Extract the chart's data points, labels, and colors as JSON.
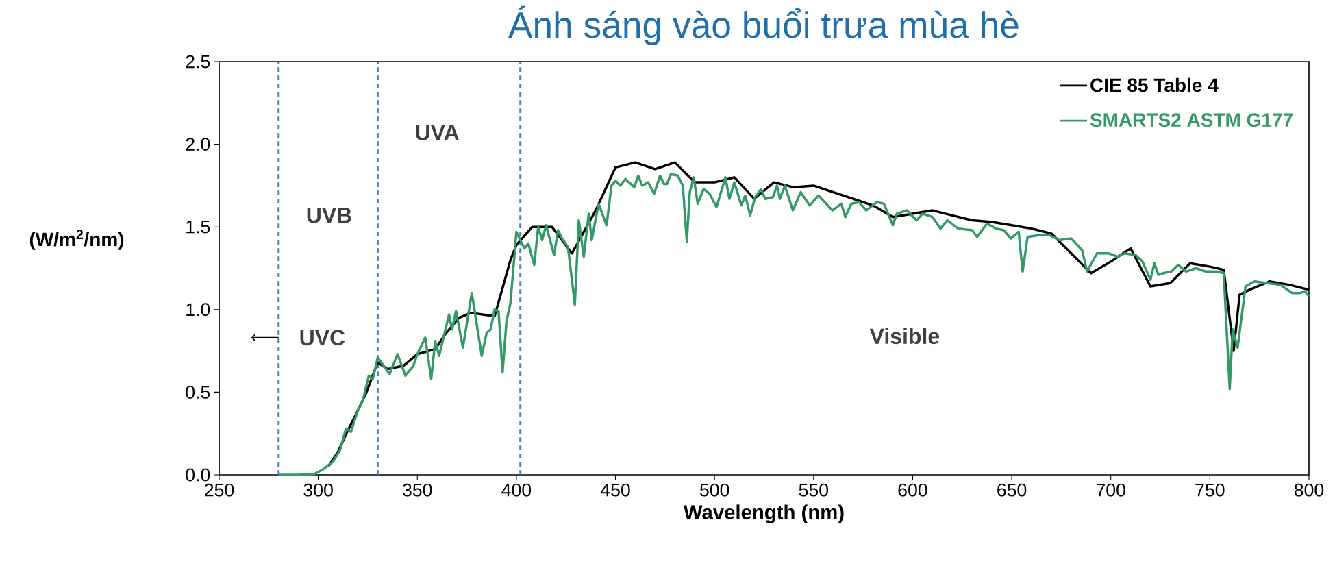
{
  "chart_data": {
    "type": "line",
    "title": "Ánh sáng vào buổi trưa mùa hè",
    "xlabel": "Wavelength (nm)",
    "ylabel": "(W/m$^{2}$/nm)",
    "xlim": [
      250,
      800
    ],
    "ylim": [
      0,
      2.5
    ],
    "xticks": [
      250,
      300,
      350,
      400,
      450,
      500,
      550,
      600,
      650,
      700,
      750,
      800
    ],
    "yticks": [
      {
        "value": 0,
        "label": "0.0"
      },
      {
        "value": 0.5,
        "label": "0.5"
      },
      {
        "value": 1,
        "label": "1.0"
      },
      {
        "value": 1.5,
        "label": "1.5"
      },
      {
        "value": 2,
        "label": "2.0"
      },
      {
        "value": 2.5,
        "label": "2.5"
      }
    ],
    "legend": "top right",
    "marker": "none",
    "line_style": "solid",
    "series": [
      {
        "name": "CIE 85 Table 4",
        "color": "#000000",
        "x": [
          305,
          310,
          315,
          320,
          324,
          330,
          335,
          343,
          350,
          359,
          364,
          371,
          377,
          389,
          397,
          400,
          408,
          418,
          428,
          440,
          450,
          460,
          470,
          480,
          490,
          500,
          510,
          520,
          530,
          540,
          550,
          560,
          570,
          580,
          590,
          600,
          610,
          620,
          630,
          640,
          650,
          660,
          670,
          680,
          690,
          700,
          710,
          720,
          730,
          740,
          750,
          757,
          762,
          765,
          770,
          780,
          790,
          800
        ],
        "values": [
          0.05,
          0.14,
          0.27,
          0.39,
          0.49,
          0.68,
          0.64,
          0.66,
          0.73,
          0.76,
          0.85,
          0.95,
          0.98,
          0.96,
          1.3,
          1.39,
          1.5,
          1.5,
          1.34,
          1.6,
          1.86,
          1.89,
          1.85,
          1.89,
          1.77,
          1.77,
          1.8,
          1.67,
          1.77,
          1.74,
          1.75,
          1.71,
          1.67,
          1.63,
          1.56,
          1.58,
          1.6,
          1.57,
          1.54,
          1.53,
          1.51,
          1.49,
          1.46,
          1.34,
          1.22,
          1.29,
          1.37,
          1.14,
          1.16,
          1.28,
          1.26,
          1.24,
          0.75,
          1.09,
          1.12,
          1.17,
          1.15,
          1.12
        ]
      },
      {
        "name": "SMARTS2 ASTM G177",
        "color": "#339966",
        "x": [
          280,
          290,
          298,
          302,
          307.5,
          311,
          314,
          316.5,
          320,
          322.5,
          325.5,
          327.5,
          330,
          336,
          340,
          344,
          348,
          350,
          354,
          357,
          359,
          361,
          366,
          367.5,
          369.5,
          373,
          377.5,
          382.5,
          385,
          387,
          389,
          391,
          393,
          395,
          397,
          400,
          404,
          406,
          409,
          411,
          413,
          415,
          419,
          421,
          423,
          426,
          429.5,
          431.5,
          434,
          436.5,
          438,
          441.5,
          445.5,
          448,
          450,
          452.5,
          455,
          459.5,
          461.5,
          463.5,
          466.5,
          469.5,
          472.5,
          474.5,
          476,
          478,
          481.5,
          484,
          486,
          487.5,
          489.5,
          491.5,
          494.5,
          497.5,
          501,
          505.5,
          507.5,
          510,
          513.5,
          515.5,
          518,
          520.5,
          523.5,
          525.5,
          529.5,
          531.5,
          533,
          535.5,
          539.5,
          543.5,
          548,
          552.5,
          559.5,
          564,
          566,
          569,
          573,
          576.5,
          582,
          585.5,
          590,
          592,
          597,
          602,
          605,
          610,
          614,
          617.5,
          623,
          630,
          632.5,
          637.5,
          642,
          646,
          649.5,
          653.5,
          655.5,
          658,
          663.5,
          669,
          674,
          680,
          685.5,
          688,
          693,
          699,
          703.5,
          707,
          712.5,
          716,
          720,
          722,
          724,
          726.5,
          730.5,
          734,
          738,
          743,
          748,
          753.5,
          757,
          760,
          761.5,
          764,
          768,
          772.5,
          779,
          785.5,
          791.5,
          795.5,
          798,
          800
        ],
        "values": [
          0,
          0,
          0.005,
          0.03,
          0.08,
          0.15,
          0.28,
          0.26,
          0.39,
          0.45,
          0.6,
          0.58,
          0.71,
          0.61,
          0.73,
          0.6,
          0.66,
          0.73,
          0.83,
          0.58,
          0.81,
          0.72,
          0.97,
          0.88,
          0.99,
          0.77,
          1.1,
          0.72,
          0.86,
          0.88,
          1,
          0.99,
          0.62,
          0.93,
          1.04,
          1.47,
          1.37,
          1.4,
          1.27,
          1.5,
          1.42,
          1.51,
          1.33,
          1.48,
          1.43,
          1.38,
          1.03,
          1.54,
          1.32,
          1.58,
          1.42,
          1.64,
          1.51,
          1.75,
          1.78,
          1.75,
          1.79,
          1.74,
          1.81,
          1.75,
          1.77,
          1.7,
          1.81,
          1.76,
          1.76,
          1.82,
          1.81,
          1.75,
          1.41,
          1.71,
          1.8,
          1.64,
          1.73,
          1.7,
          1.62,
          1.8,
          1.67,
          1.77,
          1.63,
          1.69,
          1.57,
          1.68,
          1.73,
          1.67,
          1.68,
          1.75,
          1.67,
          1.75,
          1.6,
          1.71,
          1.63,
          1.69,
          1.6,
          1.64,
          1.56,
          1.64,
          1.65,
          1.6,
          1.65,
          1.64,
          1.51,
          1.58,
          1.6,
          1.54,
          1.58,
          1.56,
          1.49,
          1.54,
          1.49,
          1.48,
          1.44,
          1.52,
          1.49,
          1.48,
          1.43,
          1.47,
          1.23,
          1.44,
          1.45,
          1.45,
          1.42,
          1.43,
          1.36,
          1.23,
          1.34,
          1.34,
          1.32,
          1.34,
          1.33,
          1.29,
          1.18,
          1.28,
          1.21,
          1.22,
          1.23,
          1.27,
          1.23,
          1.25,
          1.23,
          1.23,
          1.22,
          0.52,
          0.88,
          0.77,
          1.14,
          1.17,
          1.16,
          1.15,
          1.1,
          1.1,
          1.11,
          1.08
        ]
      }
    ],
    "ref_lines": [
      {
        "axis": "x",
        "value": 280,
        "color": "#4a7ebb",
        "line_style": "dashed"
      },
      {
        "axis": "x",
        "value": 330,
        "color": "#4a7ebb",
        "line_style": "dashed"
      },
      {
        "axis": "x",
        "value": 402,
        "color": "#4a7ebb",
        "line_style": "dashed"
      }
    ],
    "annotations": [
      "UVA",
      "UVB",
      "UVC",
      "Visible"
    ]
  }
}
